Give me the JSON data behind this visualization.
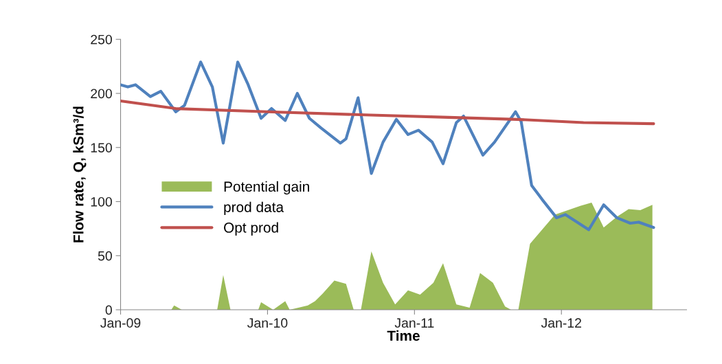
{
  "chart_data": {
    "type": "line",
    "xlabel": "Time",
    "ylabel": "Flow rate, Q, kSm³/d",
    "xlim": [
      "2009-01-01",
      "2012-11-07"
    ],
    "xticks": [
      {
        "value": "2009-01-01",
        "label": "Jan-09"
      },
      {
        "value": "2010-01-01",
        "label": "Jan-10"
      },
      {
        "value": "2011-01-01",
        "label": "Jan-11"
      },
      {
        "value": "2012-01-01",
        "label": "Jan-12"
      }
    ],
    "ylim": [
      0,
      250
    ],
    "yticks": [
      0,
      50,
      100,
      150,
      200,
      250
    ],
    "grid": false,
    "legend": "center left",
    "marker": "none",
    "line_style": "solid",
    "series": [
      {
        "name": "Potential gain",
        "type": "area",
        "color": "#9bbb59",
        "x": [
          "2009-01-01",
          "2009-05-07",
          "2009-05-14",
          "2009-06-02",
          "2009-08-29",
          "2009-09-13",
          "2009-10-01",
          "2009-12-09",
          "2009-12-16",
          "2010-01-15",
          "2010-02-14",
          "2010-02-25",
          "2010-04-11",
          "2010-04-29",
          "2010-05-18",
          "2010-06-16",
          "2010-07-15",
          "2010-08-03",
          "2010-08-21",
          "2010-09-16",
          "2010-10-15",
          "2010-11-14",
          "2010-12-16",
          "2011-01-15",
          "2011-02-17",
          "2011-03-13",
          "2011-04-15",
          "2011-05-18",
          "2011-06-13",
          "2011-07-15",
          "2011-08-14",
          "2011-08-29",
          "2011-09-16",
          "2011-10-15",
          "2011-12-16",
          "2012-02-17",
          "2012-03-16",
          "2012-04-15",
          "2012-05-18",
          "2012-06-16",
          "2012-07-15",
          "2012-08-14"
        ],
        "values": [
          0,
          0,
          4,
          0,
          0,
          32,
          0,
          0,
          7,
          0,
          8,
          0,
          4,
          8,
          15,
          27,
          24,
          0,
          0,
          54,
          25,
          5,
          18,
          14,
          25,
          43,
          5,
          2,
          34,
          25,
          3,
          0,
          0,
          61,
          88,
          96,
          99,
          76,
          86,
          93,
          92,
          97
        ]
      },
      {
        "name": "prod data",
        "color": "#4f81bd",
        "x": [
          "2009-01-01",
          "2009-01-19",
          "2009-02-07",
          "2009-03-16",
          "2009-04-11",
          "2009-05-18",
          "2009-06-09",
          "2009-07-19",
          "2009-08-17",
          "2009-09-13",
          "2009-10-19",
          "2009-11-14",
          "2009-12-16",
          "2010-01-11",
          "2010-02-14",
          "2010-03-16",
          "2010-04-15",
          "2010-05-14",
          "2010-07-01",
          "2010-07-15",
          "2010-08-14",
          "2010-09-16",
          "2010-10-15",
          "2010-11-17",
          "2010-12-16",
          "2011-01-11",
          "2011-02-14",
          "2011-03-13",
          "2011-04-15",
          "2011-05-03",
          "2011-06-20",
          "2011-07-19",
          "2011-09-09",
          "2011-09-23",
          "2011-10-19",
          "2011-11-14",
          "2011-12-20",
          "2012-01-11",
          "2012-03-09",
          "2012-04-15",
          "2012-05-18",
          "2012-06-20",
          "2012-07-11",
          "2012-08-17"
        ],
        "values": [
          208,
          206,
          208,
          197,
          202,
          183,
          189,
          229,
          206,
          154,
          229,
          208,
          177,
          186,
          175,
          200,
          177,
          168,
          154,
          158,
          196,
          126,
          155,
          176,
          162,
          166,
          155,
          135,
          173,
          179,
          143,
          155,
          183,
          174,
          115,
          102,
          85,
          88,
          74,
          97,
          85,
          80,
          81,
          76
        ]
      },
      {
        "name": "Opt prod",
        "color": "#c0504d",
        "x": [
          "2009-01-01",
          "2009-05-18",
          "2010-01-01",
          "2010-09-13",
          "2011-03-13",
          "2011-09-13",
          "2012-02-25",
          "2012-08-17"
        ],
        "values": [
          193,
          186,
          183,
          180,
          178,
          176,
          173,
          172
        ]
      }
    ]
  }
}
